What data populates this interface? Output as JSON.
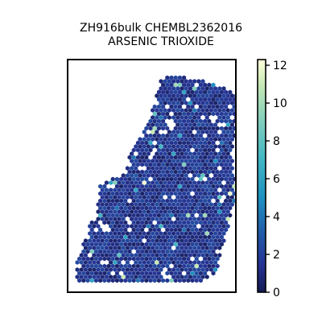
{
  "chart_data": {
    "type": "heatmap",
    "title_lines": [
      "ZH916bulk CHEMBL2362016",
      "ARSENIC TRIOXIDE"
    ],
    "xlabel": "",
    "ylabel": "",
    "grid": false,
    "legend": "none",
    "colorbar": {
      "position": "right",
      "range": [
        0,
        12.3
      ],
      "ticks": [
        0,
        2,
        4,
        6,
        8,
        10,
        12
      ],
      "tick_labels": [
        "0",
        "2",
        "4",
        "6",
        "8",
        "10",
        "12"
      ],
      "colormap": "YlGnBu_r",
      "color_stops": [
        {
          "value": 0,
          "color": "#131a52"
        },
        {
          "value": 1.5,
          "color": "#253494"
        },
        {
          "value": 3,
          "color": "#2258a6"
        },
        {
          "value": 5,
          "color": "#1f91c0"
        },
        {
          "value": 7,
          "color": "#41b6c4"
        },
        {
          "value": 9,
          "color": "#7fcdbb"
        },
        {
          "value": 11,
          "color": "#c7e9b4"
        },
        {
          "value": 12.3,
          "color": "#ffffd9"
        }
      ]
    },
    "spots": {
      "marker": "hexagon",
      "dominant_value_range": [
        0.5,
        2.5
      ],
      "hotspot_values": [
        12,
        11,
        10,
        9,
        8,
        7,
        6,
        5,
        4,
        4,
        3
      ],
      "tissue_outline": [
        [
          0.0,
          1.0
        ],
        [
          0.0,
          0.9
        ],
        [
          0.08,
          0.72
        ],
        [
          0.12,
          0.7
        ],
        [
          0.14,
          0.53
        ],
        [
          0.3,
          0.48
        ],
        [
          0.32,
          0.37
        ],
        [
          0.4,
          0.3
        ],
        [
          0.48,
          0.13
        ],
        [
          0.52,
          0.02
        ],
        [
          0.6,
          0.01
        ],
        [
          0.78,
          0.03
        ],
        [
          0.96,
          0.08
        ],
        [
          1.0,
          0.11
        ],
        [
          0.98,
          0.26
        ],
        [
          0.96,
          0.36
        ],
        [
          0.98,
          0.58
        ],
        [
          0.94,
          0.72
        ],
        [
          0.9,
          0.83
        ],
        [
          0.86,
          0.96
        ],
        [
          0.75,
          1.0
        ]
      ],
      "gaps": [
        {
          "center": [
            0.17,
            0.74
          ],
          "radius": 0.03
        },
        {
          "center": [
            0.31,
            0.7
          ],
          "radius": 0.02
        },
        {
          "center": [
            0.58,
            0.24
          ],
          "radius": 0.03
        },
        {
          "center": [
            0.84,
            0.22
          ],
          "radius": 0.025
        },
        {
          "center": [
            0.47,
            0.38
          ],
          "radius": 0.02
        }
      ]
    }
  }
}
